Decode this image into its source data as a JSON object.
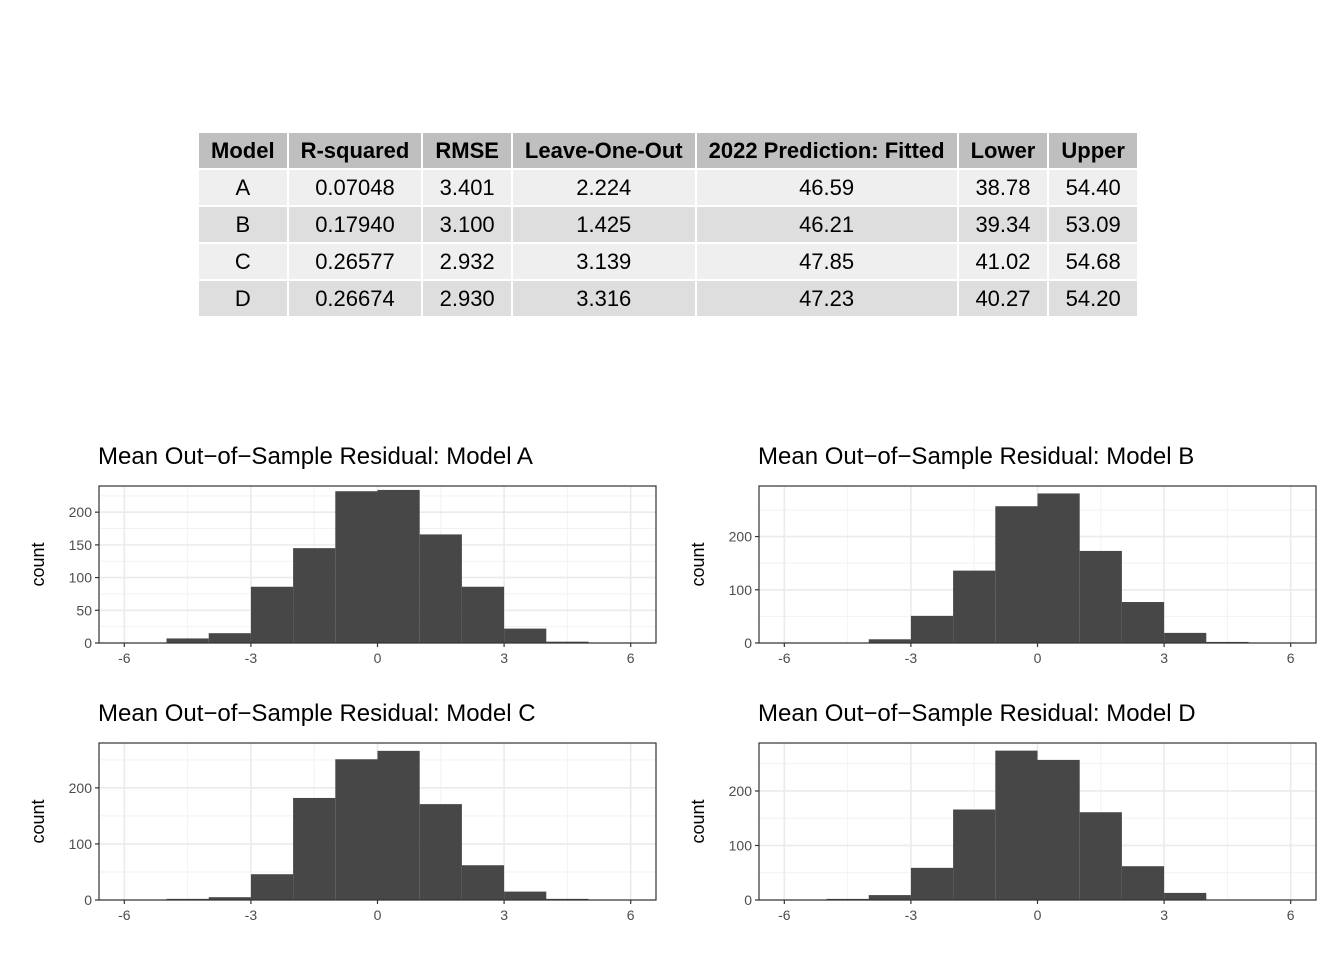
{
  "table": {
    "headers": [
      "Model",
      "R-squared",
      "RMSE",
      "Leave-One-Out",
      "2022 Prediction: Fitted",
      "Lower",
      "Upper"
    ],
    "rows": [
      [
        "A",
        "0.07048",
        "3.401",
        "2.224",
        "46.59",
        "38.78",
        "54.40"
      ],
      [
        "B",
        "0.17940",
        "3.100",
        "1.425",
        "46.21",
        "39.34",
        "53.09"
      ],
      [
        "C",
        "0.26577",
        "2.932",
        "3.139",
        "47.85",
        "41.02",
        "54.68"
      ],
      [
        "D",
        "0.26674",
        "2.930",
        "3.316",
        "47.23",
        "40.27",
        "54.20"
      ]
    ]
  },
  "chart_data": [
    {
      "type": "bar",
      "title": "Mean Out−of−Sample Residual: Model A",
      "xlabel": "",
      "ylabel": "count",
      "xlim": [
        -6.6,
        6.6
      ],
      "xticks": [
        -6,
        -3,
        0,
        3,
        6
      ],
      "xtick_labels": [
        "-6",
        "-3",
        "0",
        "3",
        "6"
      ],
      "ylim": [
        0,
        240
      ],
      "yticks": [
        0,
        50,
        100,
        150,
        200
      ],
      "yminor": [
        25,
        75,
        125,
        175,
        225
      ],
      "bin_edges": [
        -5,
        -4,
        -3,
        -2,
        -1,
        0,
        1,
        2,
        3,
        4,
        5
      ],
      "values": [
        7,
        15,
        86,
        145,
        232,
        234,
        166,
        86,
        22,
        2
      ],
      "bar_color": "#474747",
      "grid": true
    },
    {
      "type": "bar",
      "title": "Mean Out−of−Sample Residual: Model B",
      "xlabel": "",
      "ylabel": "count",
      "xlim": [
        -6.6,
        6.6
      ],
      "xticks": [
        -6,
        -3,
        0,
        3,
        6
      ],
      "xtick_labels": [
        "-6",
        "-3",
        "0",
        "3",
        "6"
      ],
      "ylim": [
        0,
        295
      ],
      "yticks": [
        0,
        100,
        200
      ],
      "yminor": [
        50,
        150,
        250
      ],
      "bin_edges": [
        -4,
        -3,
        -2,
        -1,
        0,
        1,
        2,
        3,
        4,
        5
      ],
      "values": [
        7,
        51,
        136,
        257,
        281,
        173,
        77,
        19,
        2
      ],
      "bar_color": "#474747",
      "grid": true
    },
    {
      "type": "bar",
      "title": "Mean Out−of−Sample Residual: Model C",
      "xlabel": "",
      "ylabel": "count",
      "xlim": [
        -6.6,
        6.6
      ],
      "xticks": [
        -6,
        -3,
        0,
        3,
        6
      ],
      "xtick_labels": [
        "-6",
        "-3",
        "0",
        "3",
        "6"
      ],
      "ylim": [
        0,
        280
      ],
      "yticks": [
        0,
        100,
        200
      ],
      "yminor": [
        50,
        150,
        250
      ],
      "bin_edges": [
        -5,
        -4,
        -3,
        -2,
        -1,
        0,
        1,
        2,
        3,
        4,
        5
      ],
      "values": [
        2,
        5,
        46,
        182,
        251,
        266,
        171,
        62,
        15,
        2
      ],
      "bar_color": "#474747",
      "grid": true
    },
    {
      "type": "bar",
      "title": "Mean Out−of−Sample Residual: Model D",
      "xlabel": "",
      "ylabel": "count",
      "xlim": [
        -6.6,
        6.6
      ],
      "xticks": [
        -6,
        -3,
        0,
        3,
        6
      ],
      "xtick_labels": [
        "-6",
        "-3",
        "0",
        "3",
        "6"
      ],
      "ylim": [
        0,
        288
      ],
      "yticks": [
        0,
        100,
        200
      ],
      "yminor": [
        50,
        150,
        250
      ],
      "bin_edges": [
        -5,
        -4,
        -3,
        -2,
        -1,
        0,
        1,
        2,
        3,
        4
      ],
      "values": [
        2,
        9,
        59,
        166,
        274,
        257,
        161,
        62,
        13
      ],
      "bar_color": "#474747",
      "grid": true
    }
  ]
}
